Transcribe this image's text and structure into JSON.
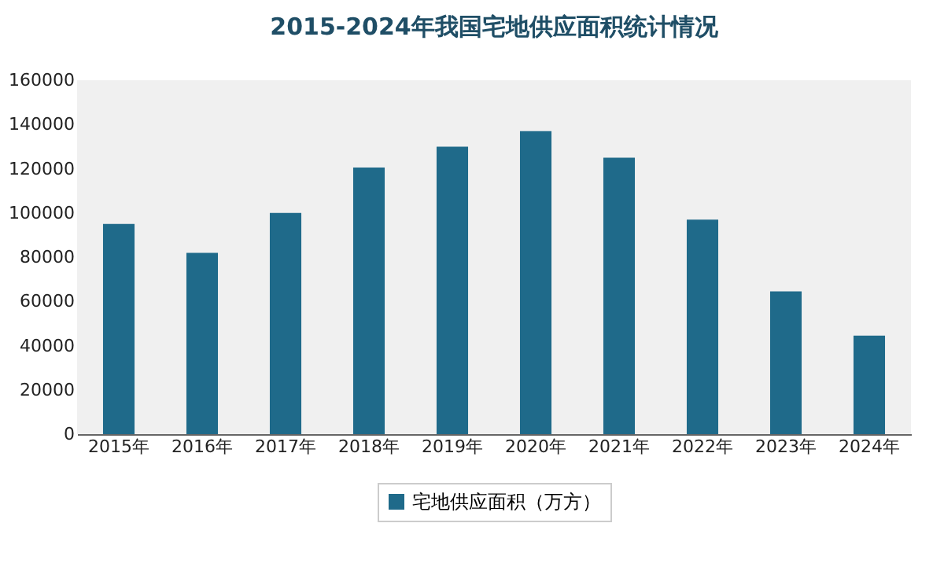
{
  "chart_data": {
    "type": "bar",
    "title": "2015-2024年我国宅地供应面积统计情况",
    "categories": [
      "2015年",
      "2016年",
      "2017年",
      "2018年",
      "2019年",
      "2020年",
      "2021年",
      "2022年",
      "2023年",
      "2024年"
    ],
    "series": [
      {
        "name": "宅地供应面积（万方）",
        "color": "#1f6a8a",
        "values": [
          95000,
          82000,
          100000,
          120500,
          130000,
          137000,
          125000,
          97000,
          64500,
          44500
        ]
      }
    ],
    "ylim": [
      0,
      160000
    ],
    "yticks": [
      0,
      20000,
      40000,
      60000,
      80000,
      100000,
      120000,
      140000,
      160000
    ],
    "grid": false,
    "legend": "bottom"
  }
}
